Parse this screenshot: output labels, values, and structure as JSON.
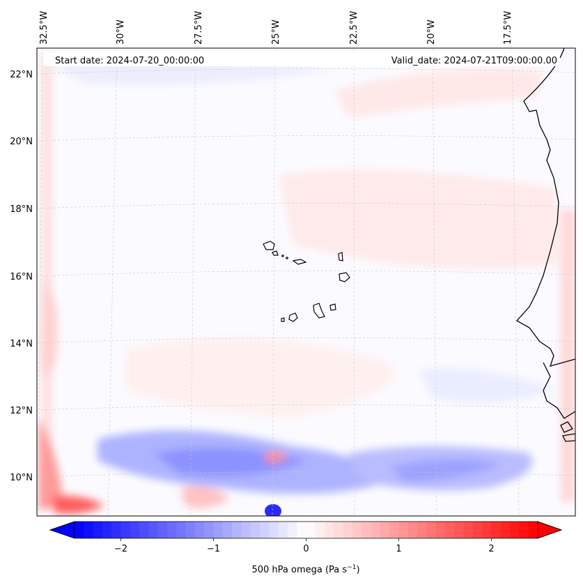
{
  "map": {
    "start_date_label": "Start date: 2024-07-20_00:00:00",
    "valid_date_label": "Valid_date: 2024-07-21T09:00:00.00",
    "lon_labels": [
      "32.5°W",
      "30°W",
      "27.5°W",
      "25°W",
      "22.5°W",
      "20°W",
      "17.5°W"
    ],
    "lat_labels": [
      "22°N",
      "20°N",
      "18°N",
      "16°N",
      "14°N",
      "12°N",
      "10°N"
    ],
    "field": "500 hPa omega",
    "units": "Pa s⁻¹"
  },
  "colorbar": {
    "tick_labels": [
      "−2",
      "−1",
      "0",
      "1",
      "2"
    ],
    "tick_values": [
      -2,
      -1,
      0,
      1,
      2
    ],
    "vmin": -2.5,
    "vmax": 2.5,
    "label_main": "500 hPa omega (Pa s",
    "label_exp": "−1",
    "label_close": ")",
    "low_color": "#0000ff",
    "mid_color": "#ffffff",
    "high_color": "#ff0000"
  }
}
